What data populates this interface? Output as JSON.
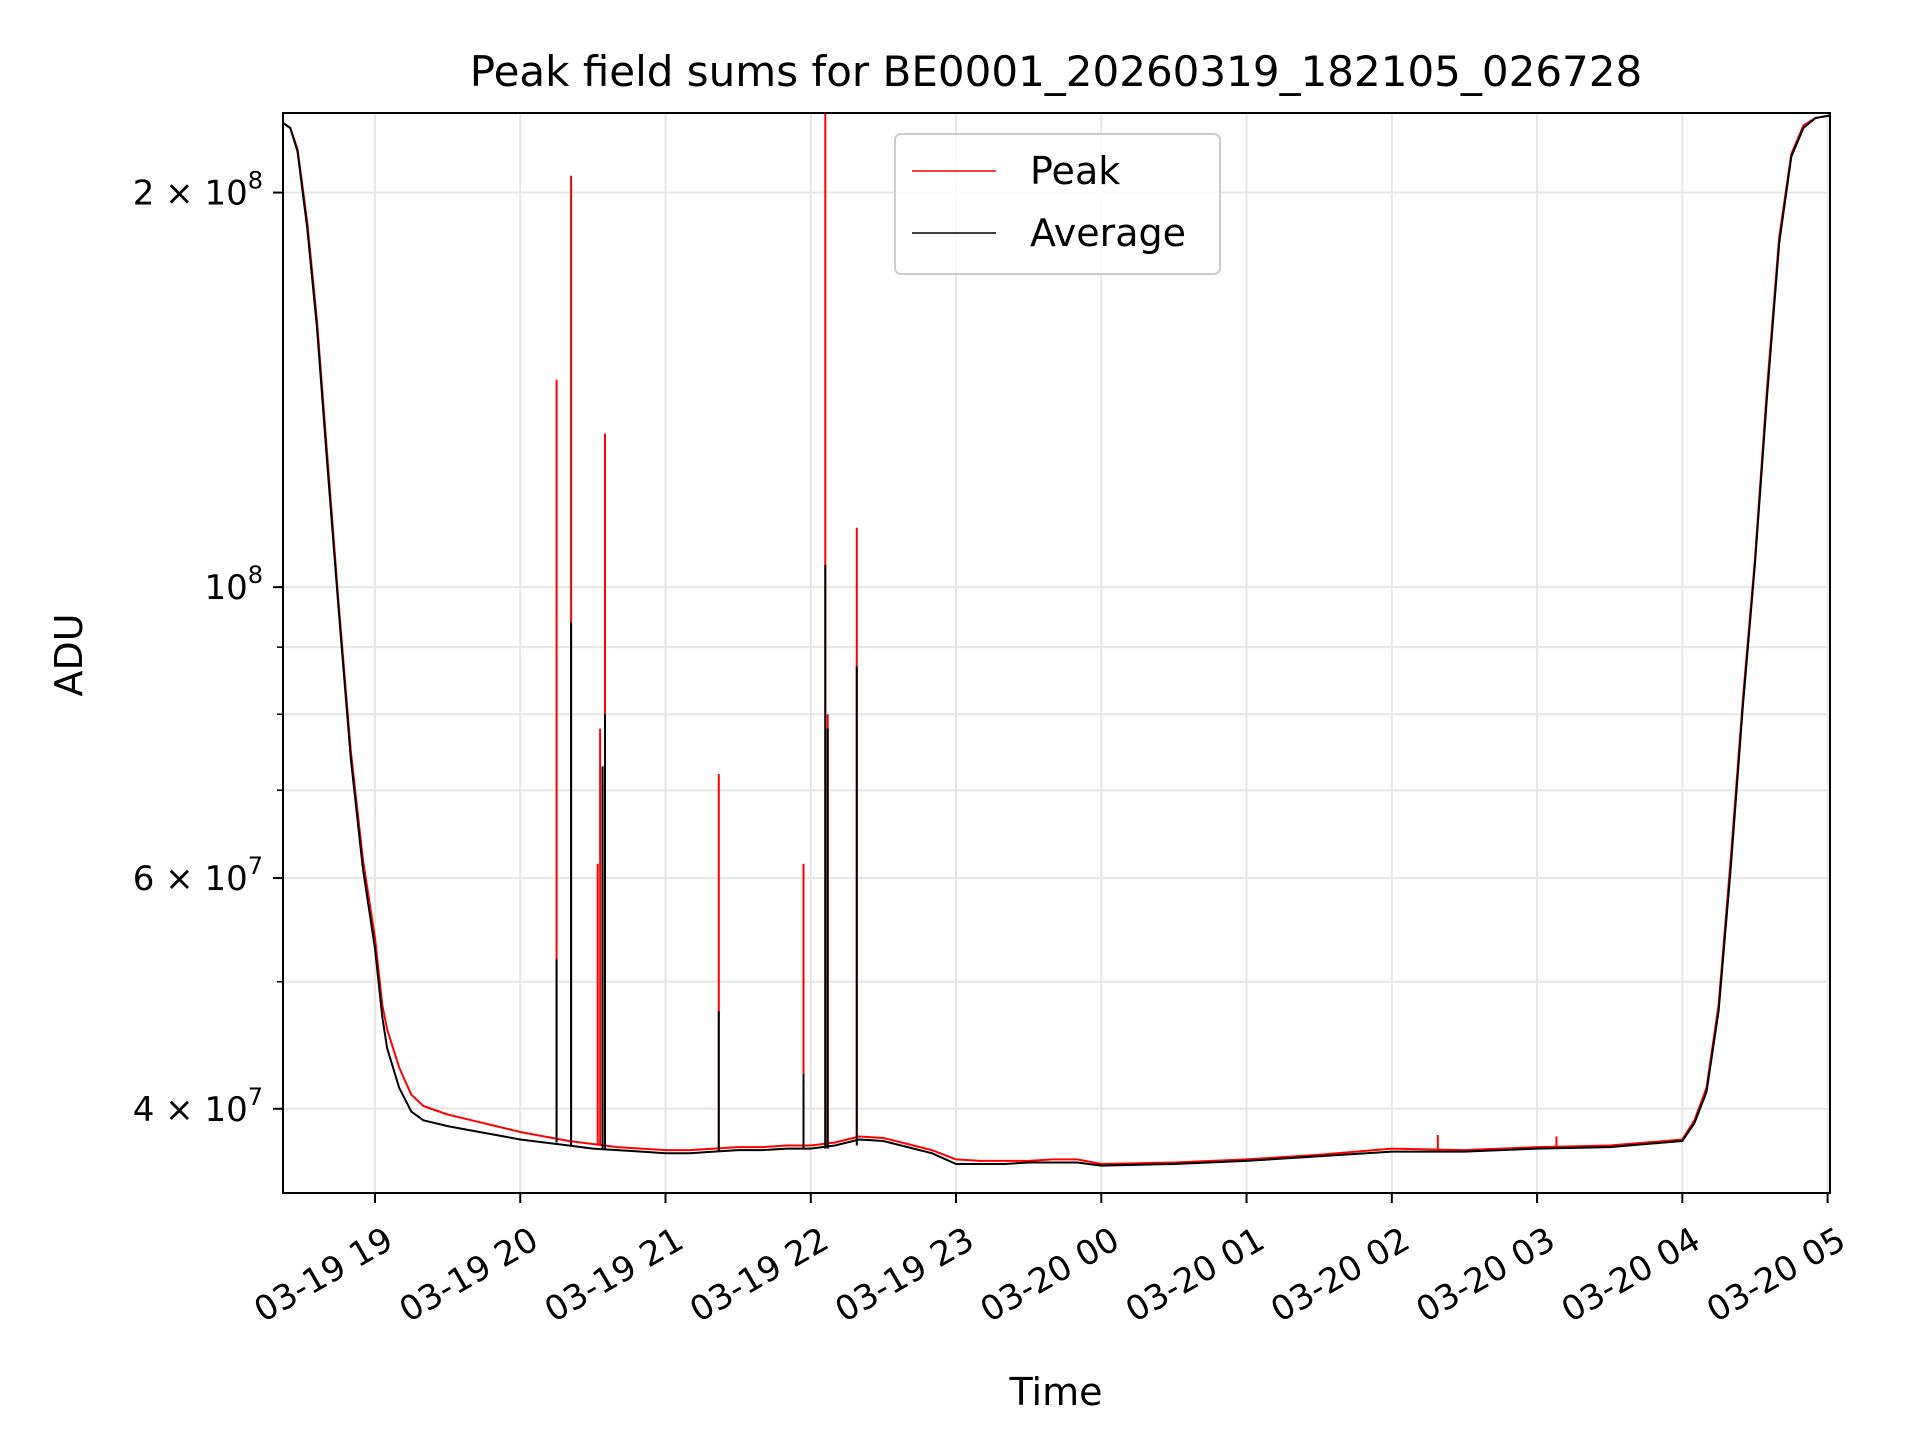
{
  "chart_data": {
    "type": "line",
    "title": "Peak field sums for BE0001_20260319_182105_026728",
    "xlabel": "Time",
    "ylabel": "ADU",
    "y_scale": "log",
    "ylim": [
      34500000,
      230000000
    ],
    "xlim": [
      "2026-03-19 18:22",
      "2026-03-20 05:01"
    ],
    "grid": true,
    "legend_position": "top-center",
    "colors": {
      "peak": "#ff0000",
      "average": "#000000",
      "grid": "#e6e6e6"
    },
    "x_ticks": [
      {
        "t": "2026-03-19 19:00",
        "label": "03-19 19"
      },
      {
        "t": "2026-03-19 20:00",
        "label": "03-19 20"
      },
      {
        "t": "2026-03-19 21:00",
        "label": "03-19 21"
      },
      {
        "t": "2026-03-19 22:00",
        "label": "03-19 22"
      },
      {
        "t": "2026-03-19 23:00",
        "label": "03-19 23"
      },
      {
        "t": "2026-03-20 00:00",
        "label": "03-20 00"
      },
      {
        "t": "2026-03-20 01:00",
        "label": "03-20 01"
      },
      {
        "t": "2026-03-20 02:00",
        "label": "03-20 02"
      },
      {
        "t": "2026-03-20 03:00",
        "label": "03-20 03"
      },
      {
        "t": "2026-03-20 04:00",
        "label": "03-20 04"
      },
      {
        "t": "2026-03-20 05:00",
        "label": "03-20 05"
      }
    ],
    "y_ticks_major": [
      {
        "v": 40000000,
        "mant": "4",
        "exp": "7"
      },
      {
        "v": 60000000,
        "mant": "6",
        "exp": "7"
      },
      {
        "v": 100000000,
        "mant": "",
        "exp": "8"
      },
      {
        "v": 200000000,
        "mant": "2",
        "exp": "8"
      }
    ],
    "y_ticks_minor": [
      50000000,
      70000000,
      80000000,
      90000000
    ],
    "series": [
      {
        "name": "Peak",
        "x": [
          "2026-03-19 18:22",
          "2026-03-19 18:25",
          "2026-03-19 18:28",
          "2026-03-19 18:32",
          "2026-03-19 18:36",
          "2026-03-19 18:40",
          "2026-03-19 18:45",
          "2026-03-19 18:50",
          "2026-03-19 18:55",
          "2026-03-19 19:00",
          "2026-03-19 19:03",
          "2026-03-19 19:05",
          "2026-03-19 19:10",
          "2026-03-19 19:15",
          "2026-03-19 19:20",
          "2026-03-19 19:30",
          "2026-03-19 19:40",
          "2026-03-19 19:50",
          "2026-03-19 20:00",
          "2026-03-19 20:10",
          "2026-03-19 20:20",
          "2026-03-19 20:30",
          "2026-03-19 20:40",
          "2026-03-19 20:50",
          "2026-03-19 21:00",
          "2026-03-19 21:10",
          "2026-03-19 21:20",
          "2026-03-19 21:30",
          "2026-03-19 21:40",
          "2026-03-19 21:50",
          "2026-03-19 22:00",
          "2026-03-19 22:10",
          "2026-03-19 22:20",
          "2026-03-19 22:30",
          "2026-03-19 22:40",
          "2026-03-19 22:50",
          "2026-03-19 23:00",
          "2026-03-19 23:10",
          "2026-03-19 23:20",
          "2026-03-19 23:30",
          "2026-03-19 23:40",
          "2026-03-19 23:50",
          "2026-03-20 00:00",
          "2026-03-20 00:30",
          "2026-03-20 01:00",
          "2026-03-20 01:30",
          "2026-03-20 02:00",
          "2026-03-20 02:30",
          "2026-03-20 03:00",
          "2026-03-20 03:30",
          "2026-03-20 04:00",
          "2026-03-20 04:05",
          "2026-03-20 04:10",
          "2026-03-20 04:15",
          "2026-03-20 04:20",
          "2026-03-20 04:25",
          "2026-03-20 04:30",
          "2026-03-20 04:35",
          "2026-03-20 04:40",
          "2026-03-20 04:45",
          "2026-03-20 04:50",
          "2026-03-20 04:55",
          "2026-03-20 05:01"
        ],
        "y": [
          226000000,
          224000000,
          216000000,
          190000000,
          160000000,
          128000000,
          97000000,
          75000000,
          62000000,
          54000000,
          48000000,
          46000000,
          43000000,
          41000000,
          40200000,
          39600000,
          39200000,
          38800000,
          38400000,
          38100000,
          37800000,
          37600000,
          37400000,
          37300000,
          37200000,
          37200000,
          37300000,
          37400000,
          37400000,
          37500000,
          37500000,
          37700000,
          38100000,
          38000000,
          37600000,
          37200000,
          36600000,
          36500000,
          36500000,
          36500000,
          36600000,
          36600000,
          36300000,
          36400000,
          36600000,
          36900000,
          37300000,
          37200000,
          37400000,
          37500000,
          37900000,
          39200000,
          41500000,
          48000000,
          62000000,
          82000000,
          105000000,
          142000000,
          185000000,
          214000000,
          225000000,
          228000000,
          229000000
        ],
        "spikes": [
          {
            "t": "2026-03-19 20:15",
            "v": 144000000
          },
          {
            "t": "2026-03-19 20:21",
            "v": 206000000
          },
          {
            "t": "2026-03-19 20:32",
            "v": 61500000
          },
          {
            "t": "2026-03-19 20:33",
            "v": 78000000
          },
          {
            "t": "2026-03-19 20:35",
            "v": 131000000
          },
          {
            "t": "2026-03-19 21:22",
            "v": 72000000
          },
          {
            "t": "2026-03-19 21:57",
            "v": 61500000
          },
          {
            "t": "2026-03-19 22:06",
            "v": 232000000
          },
          {
            "t": "2026-03-19 22:07",
            "v": 80000000
          },
          {
            "t": "2026-03-19 22:19",
            "v": 111000000
          },
          {
            "t": "2026-03-20 02:19",
            "v": 38200000
          },
          {
            "t": "2026-03-20 03:08",
            "v": 38100000
          }
        ]
      },
      {
        "name": "Average",
        "x": [
          "2026-03-19 18:22",
          "2026-03-19 18:25",
          "2026-03-19 18:28",
          "2026-03-19 18:32",
          "2026-03-19 18:36",
          "2026-03-19 18:40",
          "2026-03-19 18:45",
          "2026-03-19 18:50",
          "2026-03-19 18:55",
          "2026-03-19 19:00",
          "2026-03-19 19:03",
          "2026-03-19 19:05",
          "2026-03-19 19:10",
          "2026-03-19 19:15",
          "2026-03-19 19:20",
          "2026-03-19 19:30",
          "2026-03-19 19:40",
          "2026-03-19 19:50",
          "2026-03-19 20:00",
          "2026-03-19 20:10",
          "2026-03-19 20:20",
          "2026-03-19 20:30",
          "2026-03-19 20:40",
          "2026-03-19 20:50",
          "2026-03-19 21:00",
          "2026-03-19 21:10",
          "2026-03-19 21:20",
          "2026-03-19 21:30",
          "2026-03-19 21:40",
          "2026-03-19 21:50",
          "2026-03-19 22:00",
          "2026-03-19 22:10",
          "2026-03-19 22:20",
          "2026-03-19 22:30",
          "2026-03-19 22:40",
          "2026-03-19 22:50",
          "2026-03-19 23:00",
          "2026-03-19 23:10",
          "2026-03-19 23:20",
          "2026-03-19 23:30",
          "2026-03-19 23:40",
          "2026-03-19 23:50",
          "2026-03-20 00:00",
          "2026-03-20 00:30",
          "2026-03-20 01:00",
          "2026-03-20 01:30",
          "2026-03-20 02:00",
          "2026-03-20 02:30",
          "2026-03-20 03:00",
          "2026-03-20 03:30",
          "2026-03-20 04:00",
          "2026-03-20 04:05",
          "2026-03-20 04:10",
          "2026-03-20 04:15",
          "2026-03-20 04:20",
          "2026-03-20 04:25",
          "2026-03-20 04:30",
          "2026-03-20 04:35",
          "2026-03-20 04:40",
          "2026-03-20 04:45",
          "2026-03-20 04:50",
          "2026-03-20 04:55",
          "2026-03-20 05:01"
        ],
        "y": [
          226000000,
          224000000,
          215000000,
          188000000,
          158000000,
          126000000,
          96000000,
          74000000,
          61000000,
          53000000,
          47000000,
          44500000,
          41500000,
          39800000,
          39200000,
          38800000,
          38500000,
          38200000,
          37900000,
          37700000,
          37500000,
          37300000,
          37200000,
          37100000,
          37000000,
          37000000,
          37100000,
          37200000,
          37200000,
          37300000,
          37300000,
          37500000,
          37900000,
          37800000,
          37400000,
          37000000,
          36300000,
          36300000,
          36300000,
          36400000,
          36400000,
          36400000,
          36200000,
          36300000,
          36500000,
          36800000,
          37100000,
          37100000,
          37300000,
          37400000,
          37800000,
          39000000,
          41200000,
          47500000,
          61000000,
          81000000,
          104000000,
          140000000,
          183000000,
          213000000,
          224000000,
          228000000,
          229000000
        ],
        "spikes": [
          {
            "t": "2026-03-19 20:15",
            "v": 52000000
          },
          {
            "t": "2026-03-19 20:21",
            "v": 94000000
          },
          {
            "t": "2026-03-19 20:34",
            "v": 73000000
          },
          {
            "t": "2026-03-19 20:35",
            "v": 80000000
          },
          {
            "t": "2026-03-19 21:22",
            "v": 47500000
          },
          {
            "t": "2026-03-19 21:57",
            "v": 42500000
          },
          {
            "t": "2026-03-19 22:06",
            "v": 104000000
          },
          {
            "t": "2026-03-19 22:07",
            "v": 78000000
          },
          {
            "t": "2026-03-19 22:19",
            "v": 87000000
          }
        ]
      }
    ]
  }
}
